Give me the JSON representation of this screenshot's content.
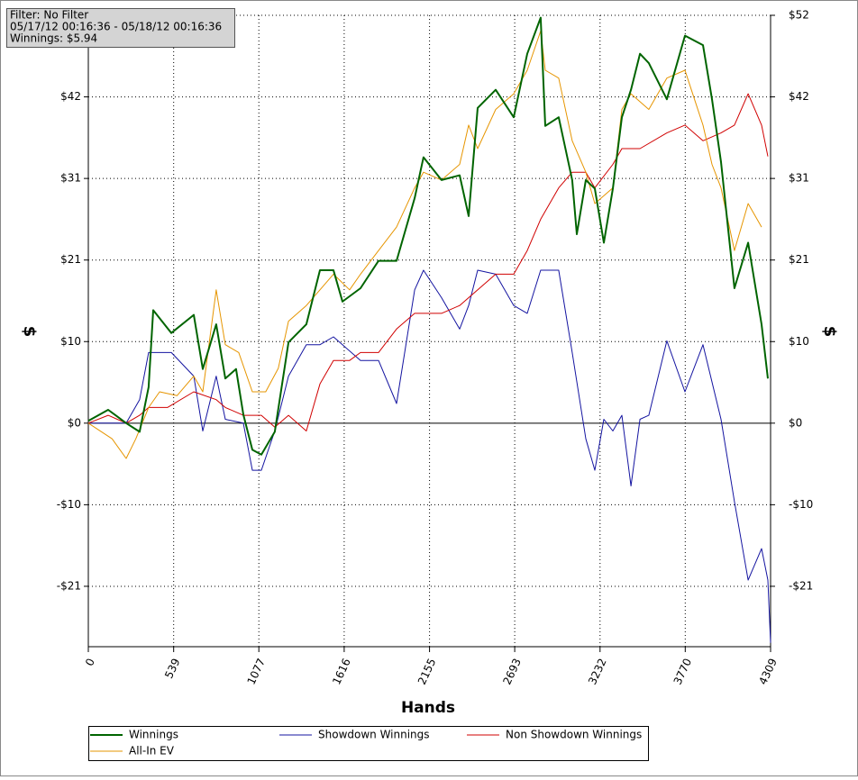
{
  "chart_data": {
    "type": "line",
    "annotations": [
      "Filter: No Filter",
      "05/17/12 00:16:36 - 05/18/12 00:16:36",
      "Winnings: $5.94"
    ],
    "x_label": "Hands",
    "y_label": "$",
    "xlim": [
      0,
      4309
    ],
    "xticks": [
      0,
      539,
      1077,
      1616,
      2155,
      2693,
      3232,
      3770,
      4309
    ],
    "ylim": [
      -28.5,
      52
    ],
    "yticks": [
      {
        "value": -20.8,
        "label": "-$21"
      },
      {
        "value": -10.4,
        "label": "-$10"
      },
      {
        "value": 0,
        "label": "$0"
      },
      {
        "value": 10.4,
        "label": "$10"
      },
      {
        "value": 20.8,
        "label": "$21"
      },
      {
        "value": 31.2,
        "label": "$31"
      },
      {
        "value": 41.6,
        "label": "$42"
      },
      {
        "value": 52,
        "label": "$52"
      }
    ],
    "grid": true,
    "series": [
      {
        "name": "Winnings",
        "color": "#006400",
        "width": 2,
        "x": [
          0,
          125,
          239,
          324,
          381,
          410,
          524,
          666,
          723,
          808,
          865,
          933,
          979,
          1036,
          1093,
          1178,
          1264,
          1377,
          1463,
          1548,
          1605,
          1719,
          1833,
          1947,
          2061,
          2117,
          2231,
          2345,
          2402,
          2459,
          2573,
          2687,
          2772,
          2857,
          2886,
          2971,
          3056,
          3085,
          3142,
          3199,
          3256,
          3313,
          3370,
          3427,
          3484,
          3540,
          3654,
          3768,
          3882,
          3939,
          3996,
          4081,
          4167,
          4252,
          4292
        ],
        "values": [
          0.3,
          1.7,
          0,
          -1.1,
          4.6,
          14.4,
          11.5,
          13.8,
          6.9,
          12.6,
          5.7,
          6.9,
          1.1,
          -3.4,
          -4.0,
          -1.1,
          10.3,
          12.6,
          19.5,
          19.5,
          15.5,
          17.2,
          20.7,
          20.7,
          28.7,
          33.9,
          31.0,
          31.6,
          26.4,
          40.2,
          42.5,
          39.0,
          47.1,
          51.7,
          37.9,
          39.0,
          31.0,
          24.1,
          31.0,
          29.9,
          23.0,
          29.9,
          39.0,
          42.5,
          47.1,
          45.9,
          41.3,
          49.4,
          48.2,
          41.3,
          33.3,
          17.2,
          23.0,
          12.6,
          5.7
        ]
      },
      {
        "name": "Showdown Winnings",
        "color": "#1414a0",
        "width": 1,
        "x": [
          0,
          239,
          324,
          381,
          524,
          666,
          723,
          808,
          865,
          979,
          1036,
          1093,
          1178,
          1264,
          1377,
          1463,
          1548,
          1719,
          1833,
          1947,
          2061,
          2117,
          2231,
          2345,
          2402,
          2459,
          2573,
          2687,
          2772,
          2857,
          2971,
          3056,
          3142,
          3199,
          3256,
          3313,
          3370,
          3427,
          3484,
          3540,
          3654,
          3768,
          3882,
          3996,
          4081,
          4167,
          4252,
          4292,
          4309
        ],
        "values": [
          0,
          0,
          3,
          9,
          9,
          6,
          -1,
          6,
          0.5,
          0,
          -6,
          -6,
          -1,
          6,
          10,
          10,
          11,
          8,
          8,
          2.5,
          17,
          19.5,
          16,
          12,
          15,
          19.5,
          19,
          15,
          14,
          19.5,
          19.5,
          9,
          -2,
          -6,
          0.5,
          -1,
          1,
          -8,
          0.5,
          1,
          10.5,
          4,
          10,
          0.5,
          -10,
          -20,
          -16,
          -20,
          -28
        ]
      },
      {
        "name": "Non Showdown Winnings",
        "color": "#d00000",
        "width": 1,
        "x": [
          0,
          125,
          239,
          324,
          381,
          500,
          666,
          808,
          865,
          979,
          1093,
          1178,
          1264,
          1377,
          1463,
          1548,
          1650,
          1719,
          1833,
          1947,
          2061,
          2231,
          2345,
          2402,
          2573,
          2687,
          2772,
          2857,
          2971,
          3056,
          3142,
          3199,
          3313,
          3370,
          3484,
          3654,
          3768,
          3882,
          3996,
          4081,
          4167,
          4252,
          4292
        ],
        "values": [
          0,
          1,
          0,
          1,
          2,
          2,
          4,
          3,
          2,
          1,
          1,
          -0.5,
          1,
          -1,
          5,
          8,
          8,
          9,
          9,
          12,
          14,
          14,
          15,
          16,
          19,
          19,
          22,
          26,
          30,
          32,
          32,
          30,
          33,
          35,
          35,
          37,
          38,
          36,
          37,
          38,
          42,
          38,
          34
        ]
      },
      {
        "name": "All-In EV",
        "color": "#e69500",
        "width": 1,
        "x": [
          0,
          150,
          239,
          300,
          381,
          450,
          560,
          666,
          723,
          808,
          865,
          950,
          1036,
          1120,
          1200,
          1264,
          1377,
          1463,
          1548,
          1650,
          1719,
          1833,
          1947,
          2061,
          2117,
          2231,
          2345,
          2402,
          2459,
          2573,
          2687,
          2772,
          2857,
          2886,
          2971,
          3056,
          3142,
          3199,
          3313,
          3370,
          3427,
          3540,
          3654,
          3768,
          3882,
          3939,
          3996,
          4081,
          4167,
          4252
        ],
        "values": [
          0,
          -2,
          -4.5,
          -2,
          2,
          4,
          3.5,
          6,
          4,
          17,
          10,
          9,
          4,
          4,
          7,
          13,
          15,
          17,
          19,
          17,
          19,
          22,
          25,
          30,
          32,
          31,
          33,
          38,
          35,
          40,
          42,
          45,
          50,
          45,
          44,
          36,
          32,
          28,
          30,
          40,
          42,
          40,
          44,
          45,
          38,
          33,
          30,
          22,
          28,
          25
        ]
      }
    ]
  }
}
